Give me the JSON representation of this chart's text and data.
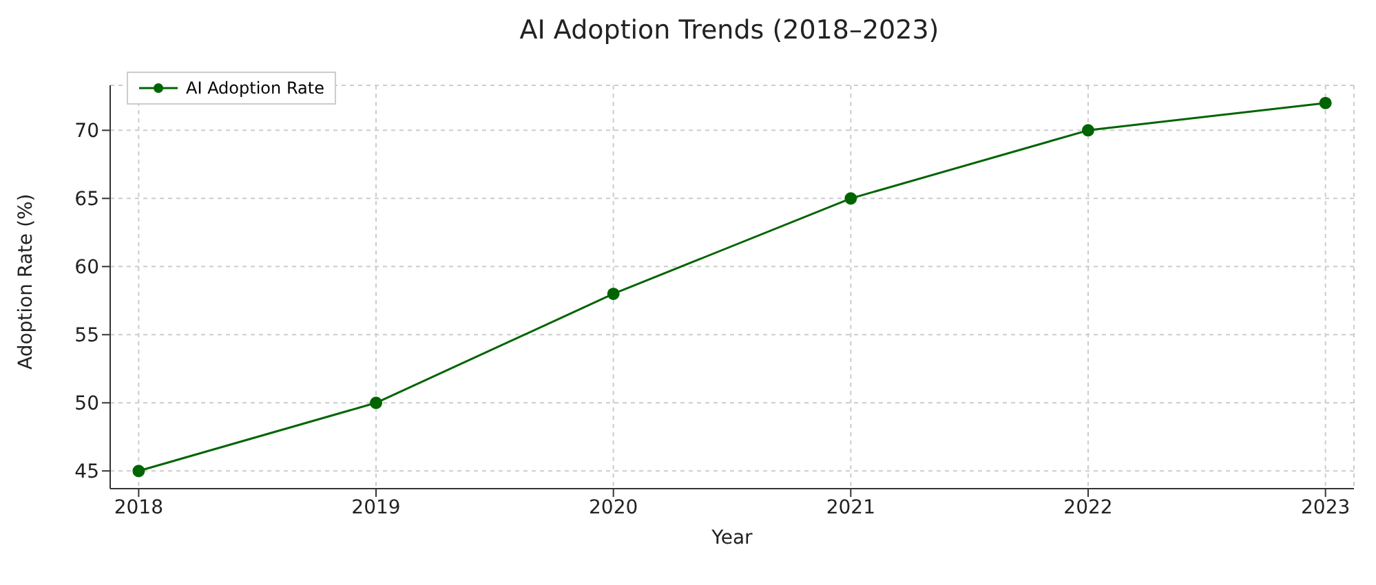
{
  "chart_data": {
    "type": "line",
    "title": "AI Adoption Trends (2018–2023)",
    "xlabel": "Year",
    "ylabel": "Adoption Rate (%)",
    "x": [
      2018,
      2019,
      2020,
      2021,
      2022,
      2023
    ],
    "series": [
      {
        "name": "AI Adoption Rate",
        "color": "#006400",
        "values": [
          45,
          50,
          58,
          65,
          70,
          72
        ]
      }
    ],
    "xlim": [
      2017.88,
      2023.12
    ],
    "xticks": [
      2018,
      2019,
      2020,
      2021,
      2022,
      2023
    ],
    "ylim": [
      43.7,
      73.3
    ],
    "yticks": [
      45,
      50,
      55,
      60,
      65,
      70
    ],
    "grid": true,
    "legend": "top left",
    "marker": "circle",
    "line_style": "solid"
  }
}
